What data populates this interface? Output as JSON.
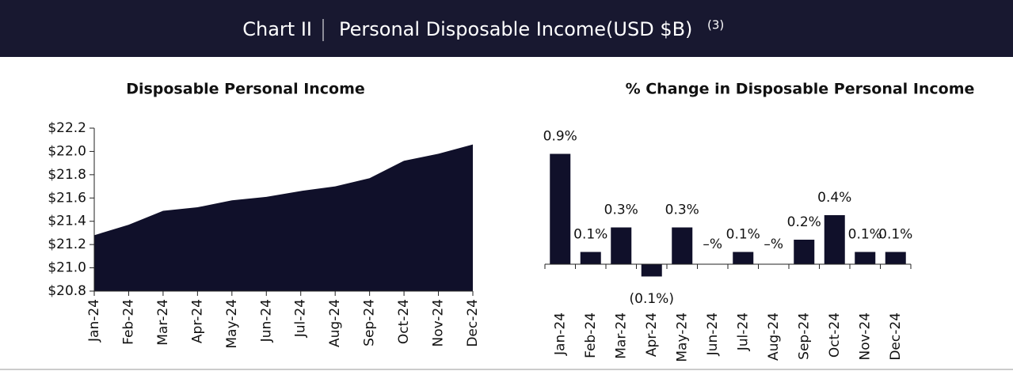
{
  "header": {
    "label": "Chart II",
    "title": "Personal Disposable Income(USD $B)",
    "note": "(3)"
  },
  "chart_data": [
    {
      "type": "area",
      "title": "Disposable Personal Income",
      "categories": [
        "Jan-24",
        "Feb-24",
        "Mar-24",
        "Apr-24",
        "May-24",
        "Jun-24",
        "Jul-24",
        "Aug-24",
        "Sep-24",
        "Oct-24",
        "Nov-24",
        "Dec-24"
      ],
      "values": [
        21.28,
        21.37,
        21.49,
        21.52,
        21.58,
        21.61,
        21.66,
        21.7,
        21.77,
        21.92,
        21.98,
        22.06
      ],
      "color": "#10102a",
      "ylim": [
        20.8,
        22.2
      ],
      "yticks": [
        {
          "value": 20.8,
          "label": "$20.8"
        },
        {
          "value": 21.0,
          "label": "$21.0"
        },
        {
          "value": 21.2,
          "label": "$21.2"
        },
        {
          "value": 21.4,
          "label": "$21.4"
        },
        {
          "value": 21.6,
          "label": "$21.6"
        },
        {
          "value": 21.8,
          "label": "$21.8"
        },
        {
          "value": 22.0,
          "label": "$22.0"
        },
        {
          "value": 22.2,
          "label": "$22.2"
        }
      ]
    },
    {
      "type": "bar",
      "title": "% Change in Disposable Personal Income",
      "categories": [
        "Jan-24",
        "Feb-24",
        "Mar-24",
        "Apr-24",
        "May-24",
        "Jun-24",
        "Jul-24",
        "Aug-24",
        "Sep-24",
        "Oct-24",
        "Nov-24",
        "Dec-24"
      ],
      "values": [
        0.9,
        0.1,
        0.3,
        -0.1,
        0.3,
        0,
        0.1,
        0,
        0.2,
        0.4,
        0.1,
        0.1
      ],
      "value_labels": [
        "0.9%",
        "0.1%",
        "0.3%",
        "(0.1%)",
        "0.3%",
        "–%",
        "0.1%",
        "–%",
        "0.2%",
        "0.4%",
        "0.1%",
        "0.1%"
      ],
      "color": "#10102a"
    }
  ]
}
